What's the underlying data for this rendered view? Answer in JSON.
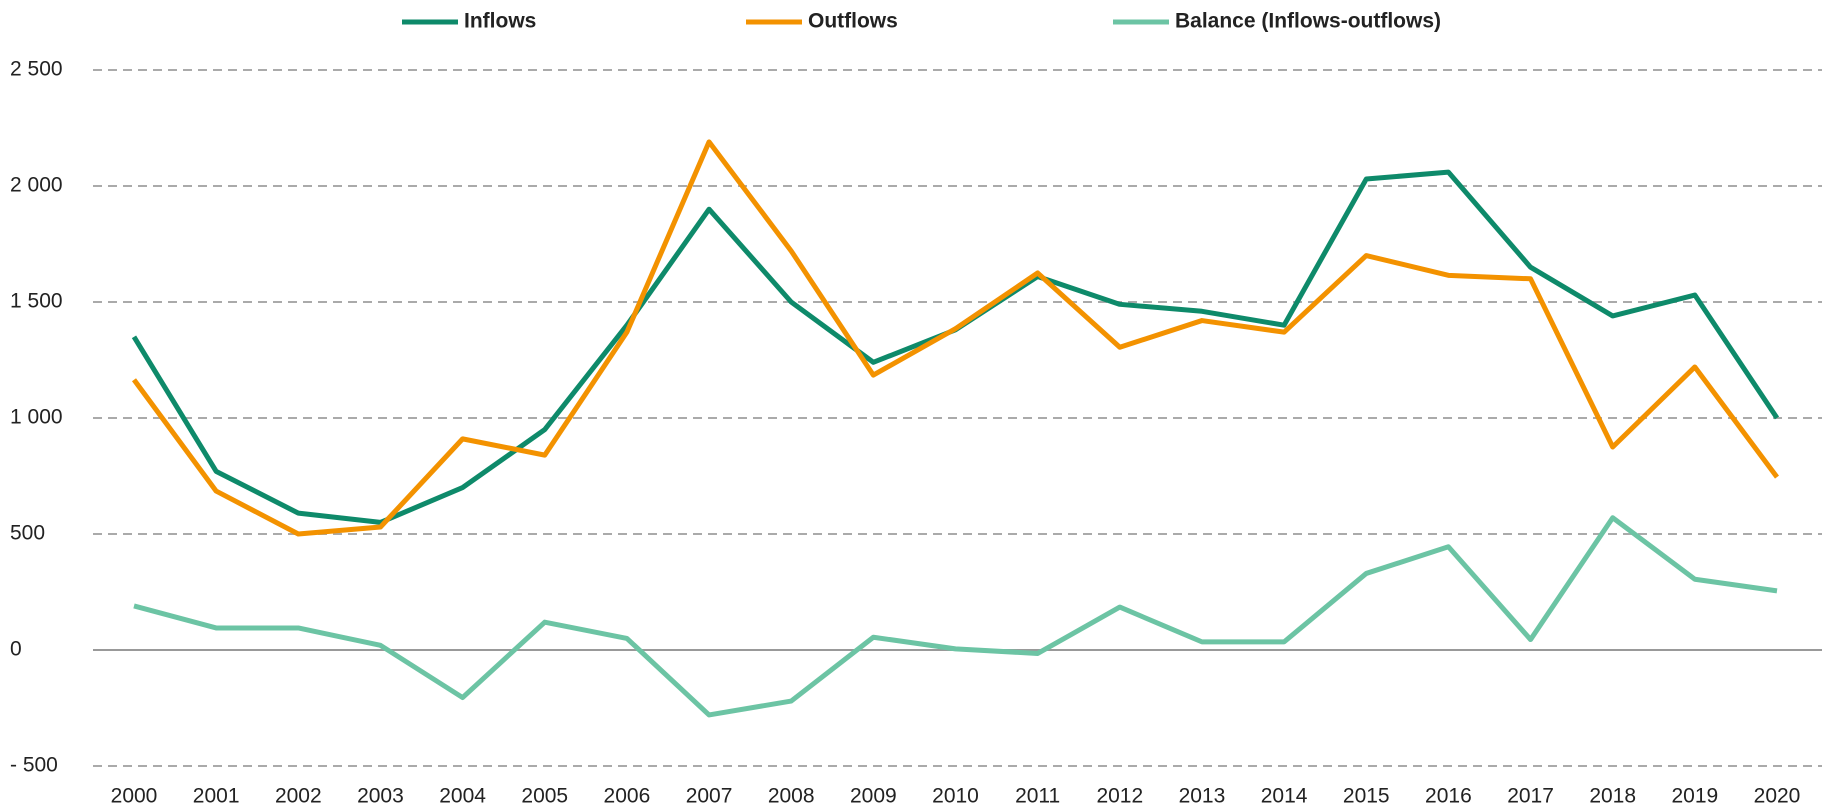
{
  "chart_data": {
    "type": "line",
    "categories": [
      "2000",
      "2001",
      "2002",
      "2003",
      "2004",
      "2005",
      "2006",
      "2007",
      "2008",
      "2009",
      "2010",
      "2011",
      "2012",
      "2013",
      "2014",
      "2015",
      "2016",
      "2017",
      "2018",
      "2019",
      "2020"
    ],
    "series": [
      {
        "name": "Inflows",
        "color": "#0e8a6a",
        "values": [
          1350,
          770,
          590,
          550,
          700,
          950,
          1400,
          1900,
          1500,
          1240,
          1380,
          1610,
          1490,
          1460,
          1400,
          2030,
          2060,
          1650,
          1440,
          1530,
          1000
        ]
      },
      {
        "name": "Outflows",
        "color": "#f39200",
        "values": [
          1165,
          685,
          500,
          530,
          910,
          840,
          1370,
          2190,
          1720,
          1185,
          1385,
          1625,
          1305,
          1420,
          1370,
          1700,
          1615,
          1600,
          875,
          1220,
          745
        ]
      },
      {
        "name": "Balance (Inflows-outflows)",
        "color": "#6cc4a4",
        "values": [
          190,
          95,
          95,
          20,
          -205,
          120,
          50,
          -280,
          -220,
          55,
          5,
          -15,
          185,
          35,
          35,
          330,
          445,
          45,
          570,
          305,
          255
        ]
      }
    ],
    "ylim": [
      -500,
      2500
    ],
    "yticks": [
      {
        "value": -500,
        "label": "- 500"
      },
      0,
      500,
      {
        "value": 1000,
        "label": "1 000"
      },
      {
        "value": 1500,
        "label": "1 500"
      },
      {
        "value": 2000,
        "label": "2 000"
      },
      {
        "value": 2500,
        "label": "2 500"
      }
    ],
    "grid": true,
    "legend": "top"
  }
}
